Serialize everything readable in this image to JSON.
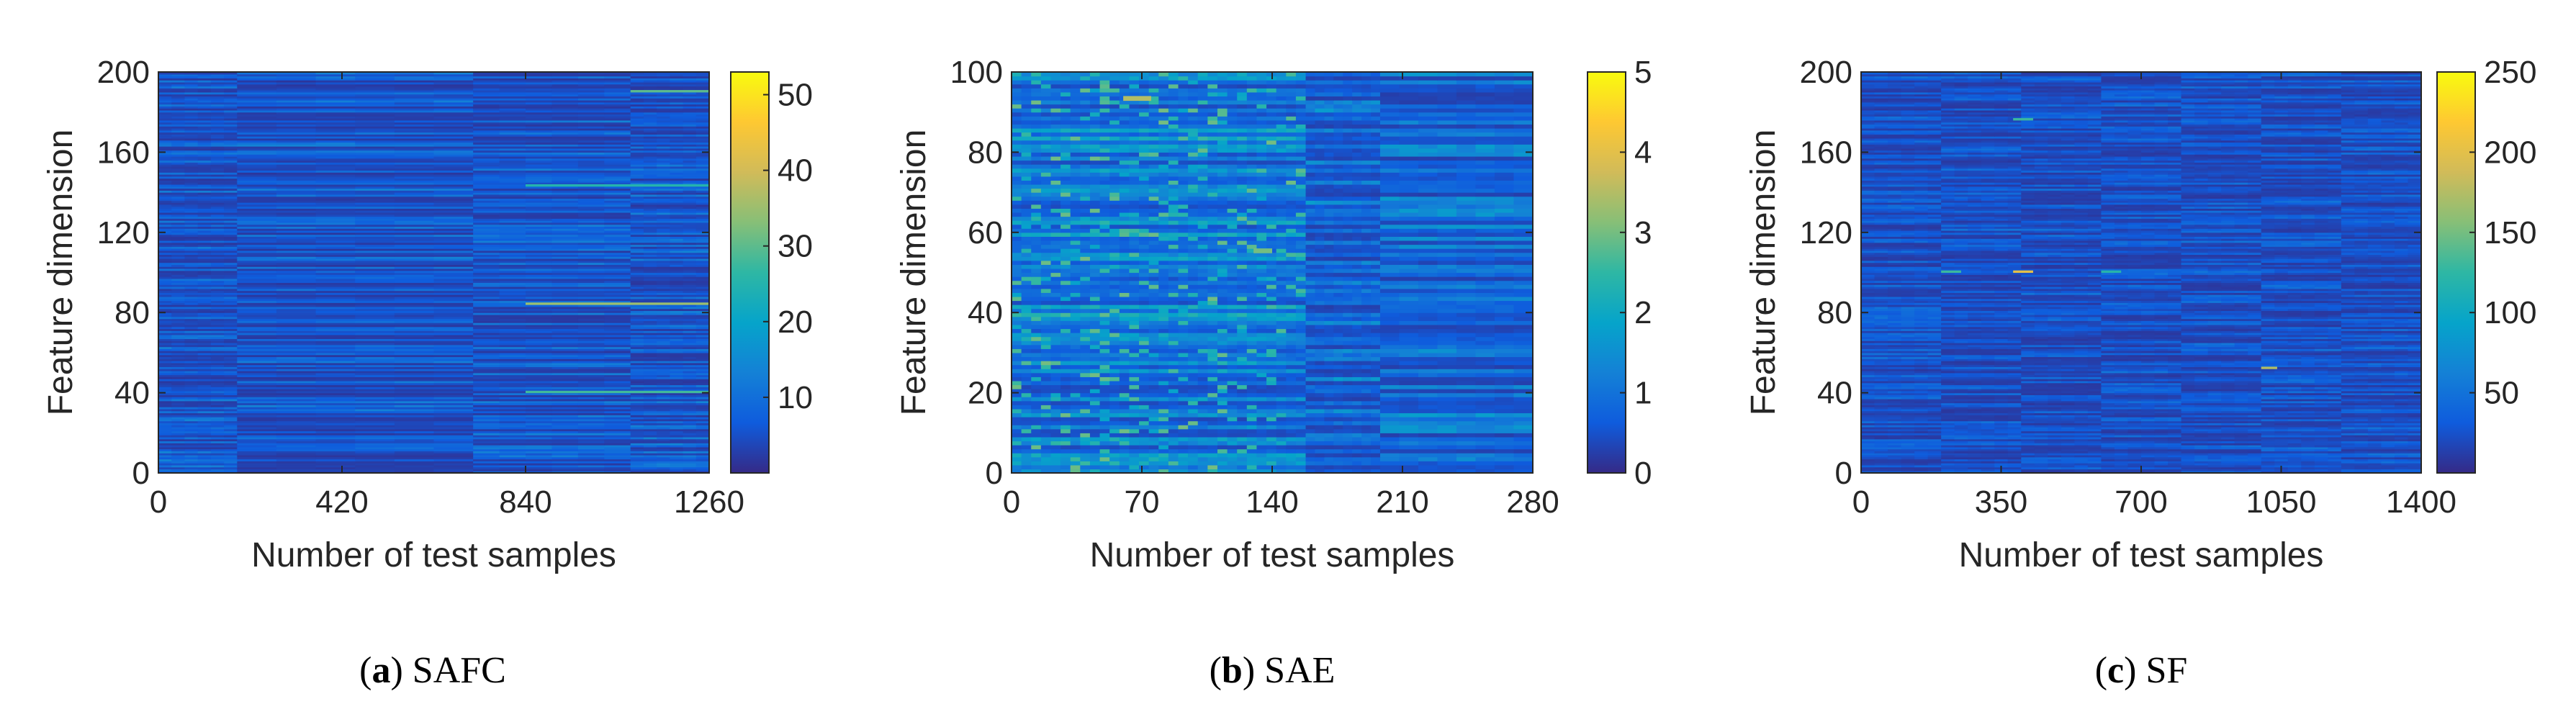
{
  "colormap": "parula",
  "colormap_stops": [
    "#352a87",
    "#0f5cdd",
    "#1481d6",
    "#06a4ca",
    "#2eb7a4",
    "#87bf77",
    "#d1bb59",
    "#fec832",
    "#f9fb0e"
  ],
  "chart_data": [
    {
      "type": "heatmap",
      "caption_label": "(a)",
      "caption_letter": "a",
      "caption_name": "SAFC",
      "xlabel": "Number of test samples",
      "ylabel": "Feature dimension",
      "xlim": [
        0,
        1260
      ],
      "ylim": [
        0,
        200
      ],
      "xticks": [
        0,
        420,
        840,
        1260
      ],
      "yticks": [
        0,
        40,
        80,
        120,
        160,
        200
      ],
      "colorbar_range": [
        0,
        53
      ],
      "colorbar_ticks": [
        10,
        20,
        30,
        40,
        50
      ],
      "segment_boundaries": [
        180,
        720,
        1080
      ],
      "row_value_range": [
        2,
        12
      ],
      "highlights": [
        {
          "row": 84,
          "x_range": [
            840,
            1260
          ],
          "value": 35
        },
        {
          "row": 40,
          "x_range": [
            840,
            1260
          ],
          "value": 28
        },
        {
          "row": 190,
          "x_range": [
            1080,
            1260
          ],
          "value": 30
        },
        {
          "row": 143,
          "x_range": [
            840,
            1260
          ],
          "value": 25
        }
      ]
    },
    {
      "type": "heatmap",
      "caption_label": "(b)",
      "caption_letter": "b",
      "caption_name": "SAE",
      "xlabel": "Number of test samples",
      "ylabel": "Feature dimension",
      "xlim": [
        0,
        280
      ],
      "ylim": [
        0,
        100
      ],
      "xticks": [
        0,
        70,
        140,
        210,
        280
      ],
      "yticks": [
        0,
        20,
        40,
        60,
        80,
        100
      ],
      "colorbar_range": [
        0,
        5
      ],
      "colorbar_ticks": [
        0,
        1,
        2,
        3,
        4,
        5
      ],
      "segment_boundaries": [
        158,
        198
      ],
      "row_value_range": [
        0.3,
        1.5
      ],
      "highlights": [
        {
          "row": 93,
          "x_range": [
            60,
            75
          ],
          "value": 3.5
        },
        {
          "row": 55,
          "x_range": [
            130,
            140
          ],
          "value": 3.0
        }
      ]
    },
    {
      "type": "heatmap",
      "caption_label": "(c)",
      "caption_letter": "c",
      "caption_name": "SF",
      "xlabel": "Number of test samples",
      "ylabel": "Feature dimension",
      "xlim": [
        0,
        1400
      ],
      "ylim": [
        0,
        200
      ],
      "xticks": [
        0,
        350,
        700,
        1050,
        1400
      ],
      "yticks": [
        0,
        40,
        80,
        120,
        160,
        200
      ],
      "colorbar_range": [
        0,
        250
      ],
      "colorbar_ticks": [
        50,
        100,
        150,
        200,
        250
      ],
      "segment_boundaries": [
        200,
        400,
        600,
        800,
        1000,
        1200
      ],
      "row_value_range": [
        10,
        45
      ],
      "highlights": [
        {
          "row": 100,
          "x_range": [
            380,
            430
          ],
          "value": 200
        },
        {
          "row": 52,
          "x_range": [
            1000,
            1040
          ],
          "value": 175
        },
        {
          "row": 176,
          "x_range": [
            380,
            430
          ],
          "value": 130
        },
        {
          "row": 100,
          "x_range": [
            200,
            250
          ],
          "value": 130
        },
        {
          "row": 100,
          "x_range": [
            600,
            650
          ],
          "value": 120
        }
      ]
    }
  ]
}
